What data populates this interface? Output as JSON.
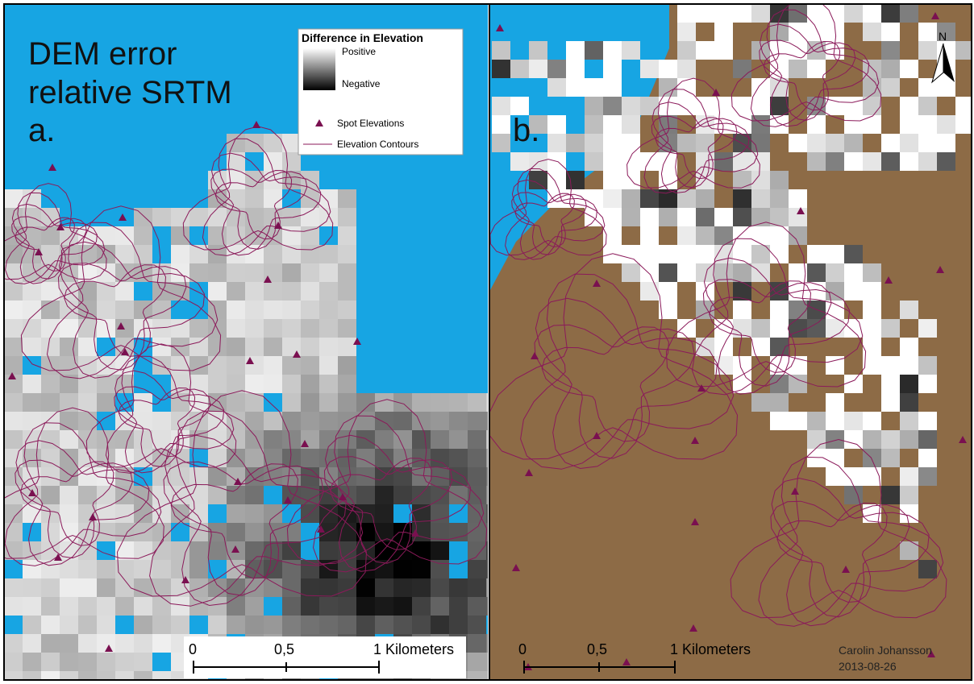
{
  "panel_a": {
    "title_lines": [
      "DEM error",
      "relative SRTM"
    ],
    "label": "a.",
    "legend": {
      "title": "Difference in Elevation",
      "ramp_high": "Positive",
      "ramp_low": "Negative",
      "items": [
        "Spot Elevations",
        "Elevation Contours"
      ]
    },
    "scale_bar": [
      "0",
      "0,5",
      "1 Kilometers"
    ]
  },
  "panel_b": {
    "label": "b.",
    "north": "N",
    "scale_bar": [
      "0",
      "0,5",
      "1 Kilometers"
    ],
    "author": "Carolin Johansson",
    "date": "2013-08-26"
  }
}
